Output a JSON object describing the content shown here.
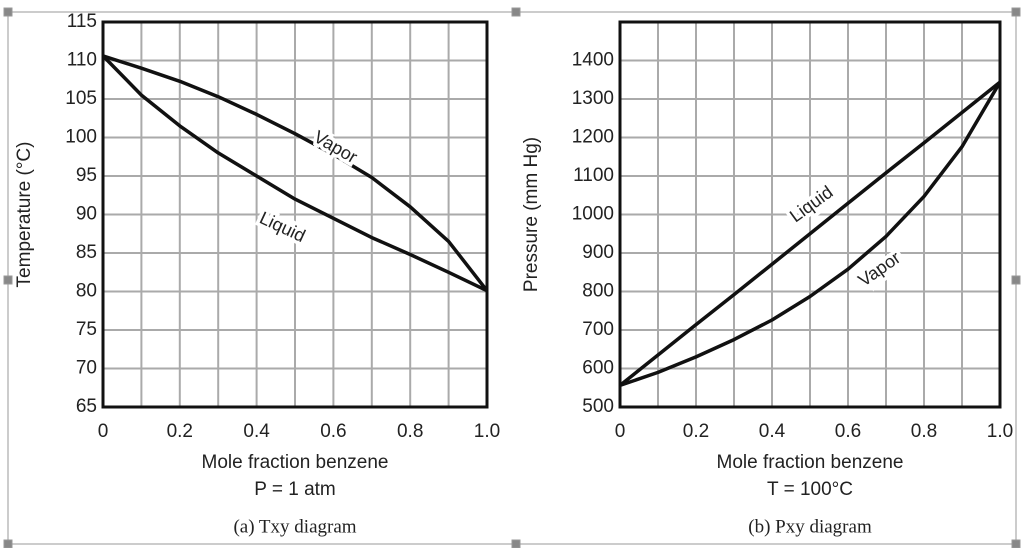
{
  "chart_data": [
    {
      "type": "line",
      "title": "(a) Txy diagram",
      "subtitle": "P = 1 atm",
      "x_label": "Mole fraction benzene",
      "y_label": "Temperature (°C)",
      "x": [
        0,
        0.1,
        0.2,
        0.3,
        0.4,
        0.5,
        0.6,
        0.7,
        0.8,
        0.9,
        1.0
      ],
      "series": [
        {
          "name": "Vapor",
          "color": "#111111",
          "values": [
            110.6,
            109,
            107.3,
            105.3,
            103,
            100.5,
            97.8,
            94.8,
            91,
            86.5,
            80.1
          ]
        },
        {
          "name": "Liquid",
          "color": "#111111",
          "values": [
            110.6,
            105.5,
            101.5,
            98,
            95,
            92,
            89.5,
            87,
            84.8,
            82.5,
            80.1
          ]
        }
      ],
      "xlim": [
        0,
        1
      ],
      "xticks": [
        0,
        0.2,
        0.4,
        0.6,
        0.8,
        {
          "value": 1,
          "label": "1.0"
        }
      ],
      "x_minor_ticks": [
        0.1,
        0.3,
        0.5,
        0.7,
        0.9
      ],
      "ylim": [
        65,
        115
      ],
      "yticks": [
        65,
        70,
        75,
        80,
        85,
        90,
        95,
        100,
        105,
        110,
        115
      ],
      "grid": true
    },
    {
      "type": "line",
      "title": "(b) Pxy diagram",
      "subtitle": "T = 100°C",
      "x_label": "Mole fraction benzene",
      "y_label": "Pressure (mm Hg)",
      "x": [
        0,
        0.1,
        0.2,
        0.3,
        0.4,
        0.5,
        0.6,
        0.7,
        0.8,
        0.9,
        1.0
      ],
      "series": [
        {
          "name": "Liquid",
          "color": "#111111",
          "values": [
            556,
            635,
            714,
            792,
            871,
            950,
            1029,
            1108,
            1186,
            1265,
            1344
          ]
        },
        {
          "name": "Vapor",
          "color": "#111111",
          "values": [
            556,
            590,
            630,
            675,
            726,
            787,
            858,
            943,
            1047,
            1176,
            1344
          ]
        }
      ],
      "xlim": [
        0,
        1
      ],
      "xticks": [
        0,
        0.2,
        0.4,
        0.6,
        0.8,
        {
          "value": 1,
          "label": "1.0"
        }
      ],
      "x_minor_ticks": [
        0.1,
        0.3,
        0.5,
        0.7,
        0.9
      ],
      "ylim": [
        500,
        1500
      ],
      "yticks": [
        500,
        600,
        700,
        800,
        900,
        1000,
        1100,
        1200,
        1300,
        1400
      ],
      "y_minor_ticks": [
        1500
      ],
      "grid": true
    }
  ]
}
